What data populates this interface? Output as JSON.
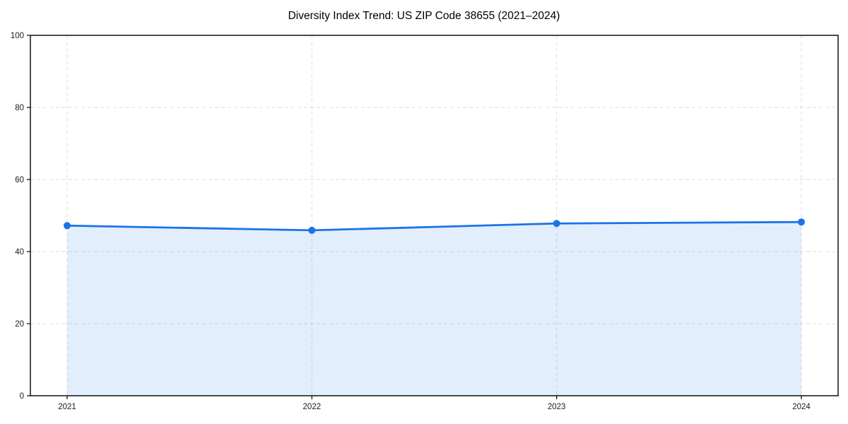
{
  "chart_data": {
    "type": "area",
    "title": "Diversity Index Trend: US ZIP Code 38655 (2021–2024)",
    "categories": [
      "2021",
      "2022",
      "2023",
      "2024"
    ],
    "series": [
      {
        "name": "Diversity Index",
        "values": [
          47.2,
          45.9,
          47.8,
          48.2
        ]
      }
    ],
    "xlabel": "",
    "ylabel": "",
    "ylim": [
      0,
      100
    ],
    "yticks": [
      0,
      20,
      40,
      60,
      80,
      100
    ],
    "grid": true,
    "grid_style": "dashed",
    "legend_position": "none",
    "line_color": "#1a73e8",
    "marker_color": "#1a73e8",
    "fill_color": "rgba(26,115,232,0.12)",
    "grid_color": "#dcdcdc",
    "axis_color": "#000000",
    "tick_label_color": "#1a1a1a",
    "background_color": "#ffffff"
  }
}
